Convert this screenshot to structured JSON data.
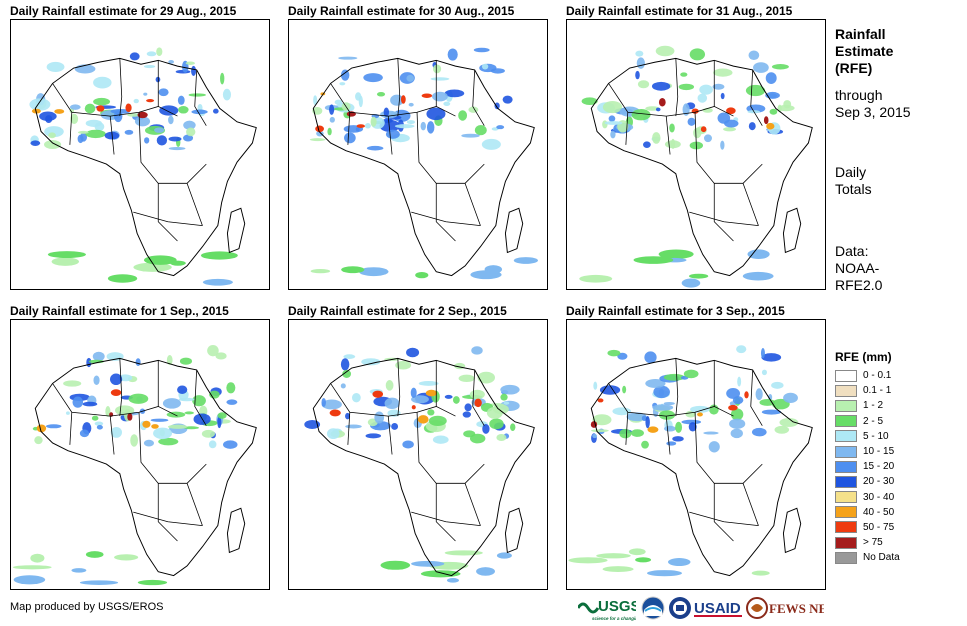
{
  "panels": [
    {
      "title": "Daily Rainfall estimate for 29 Aug., 2015"
    },
    {
      "title": "Daily Rainfall estimate for 30 Aug., 2015"
    },
    {
      "title": "Daily Rainfall estimate for 31 Aug., 2015"
    },
    {
      "title": "Daily Rainfall estimate for 1 Sep., 2015"
    },
    {
      "title": "Daily Rainfall estimate for 2 Sep., 2015"
    },
    {
      "title": "Daily Rainfall estimate for 3 Sep., 2015"
    }
  ],
  "side": {
    "title_lines": [
      "Rainfall",
      "Estimate",
      "(RFE)"
    ],
    "through_lines": [
      "through",
      "Sep 3, 2015"
    ],
    "totals_lines": [
      "Daily",
      "Totals"
    ],
    "data_lines": [
      "Data:",
      "NOAA-",
      "RFE2.0"
    ]
  },
  "legend": {
    "title": "RFE (mm)",
    "items": [
      {
        "label": "0 - 0.1",
        "color": "#ffffff"
      },
      {
        "label": "0.1 - 1",
        "color": "#f0dfc0"
      },
      {
        "label": "1 - 2",
        "color": "#b8f0b0"
      },
      {
        "label": "2 - 5",
        "color": "#66dd66"
      },
      {
        "label": "5 - 10",
        "color": "#aee8f5"
      },
      {
        "label": "10 - 15",
        "color": "#7fb8f0"
      },
      {
        "label": "15 - 20",
        "color": "#4e8ff0"
      },
      {
        "label": "20 - 30",
        "color": "#1f55e0"
      },
      {
        "label": "30 - 40",
        "color": "#f5e18a"
      },
      {
        "label": "40 - 50",
        "color": "#f5a21a"
      },
      {
        "label": "50 - 75",
        "color": "#ee3b10"
      },
      {
        "label": "> 75",
        "color": "#a51c1c"
      },
      {
        "label": "No Data",
        "color": "#999999"
      }
    ]
  },
  "footer": {
    "note": "Map produced by USGS/EROS"
  },
  "logos": {
    "usgs": "USGS",
    "usgs_tagline": "science for a changing world",
    "usaid": "USAID",
    "famine": "FEWS NET"
  }
}
